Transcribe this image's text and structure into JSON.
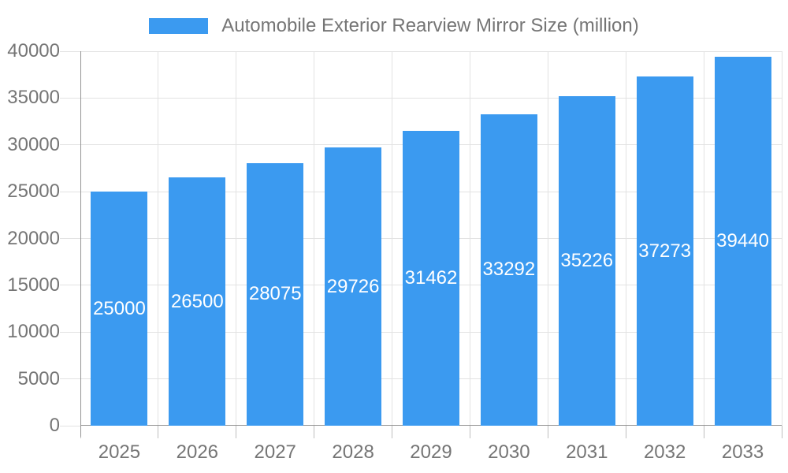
{
  "legend": {
    "label": "Automobile Exterior Rearview Mirror Size (million)"
  },
  "colors": {
    "bar": "#3B9AF0",
    "bar_label_text": "#FFFFFF",
    "axis_line": "#949494",
    "grid_line": "#E2E2E2",
    "tick_line": "#BFBFBF",
    "axis_text": "#757575",
    "legend_text": "#757575"
  },
  "chart_data": {
    "type": "bar",
    "title": "Automobile Exterior Rearview Mirror Size (million)",
    "series_name": "Automobile Exterior Rearview Mirror Size (million)",
    "categories": [
      "2025",
      "2026",
      "2027",
      "2028",
      "2029",
      "2030",
      "2031",
      "2032",
      "2033"
    ],
    "values": [
      25000,
      26500,
      28075,
      29726,
      31462,
      33292,
      35226,
      37273,
      39440
    ],
    "xlabel": "",
    "ylabel": "",
    "ylim": [
      0,
      40000
    ],
    "ytick_interval": 5000,
    "ytick_labels": [
      "0",
      "5000",
      "10000",
      "15000",
      "20000",
      "25000",
      "30000",
      "35000",
      "40000"
    ],
    "grid": true,
    "legend_position": "top",
    "bar_label_position": "center-of-bar"
  }
}
